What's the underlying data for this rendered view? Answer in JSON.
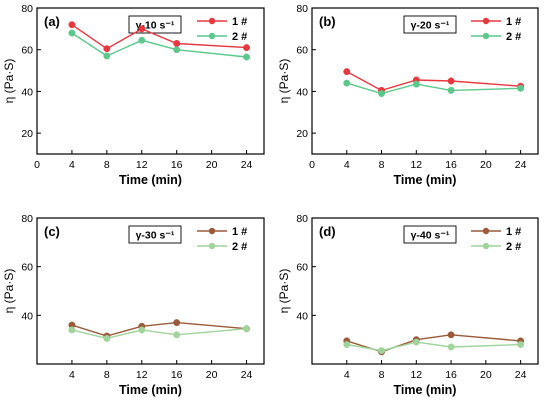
{
  "chart_data": [
    {
      "type": "line",
      "panel_label": "(a)",
      "annotation": "γ-10 s⁻¹",
      "xlabel": "Time (min)",
      "ylabel": "η (Pa·S)",
      "xlim": [
        0,
        26
      ],
      "ylim": [
        10,
        80
      ],
      "x_ticks": [
        0,
        4,
        8,
        12,
        16,
        20,
        24
      ],
      "y_ticks": [
        20,
        40,
        60,
        80
      ],
      "show_x_tick_labels": false,
      "x": [
        4,
        8,
        12,
        16,
        24
      ],
      "series": [
        {
          "name": "1 #",
          "values": [
            72,
            60.5,
            70,
            63,
            61
          ]
        },
        {
          "name": "2 #",
          "values": [
            68,
            57,
            64.5,
            60,
            56.5
          ]
        }
      ],
      "legend": "top-right"
    },
    {
      "type": "line",
      "panel_label": "(b)",
      "annotation": "γ-20 s⁻¹",
      "xlabel": "Time (min)",
      "ylabel": "η (Pa·S)",
      "xlim": [
        0,
        26
      ],
      "ylim": [
        10,
        80
      ],
      "x_ticks": [
        0,
        4,
        8,
        12,
        16,
        20,
        24
      ],
      "y_ticks": [
        20,
        40,
        60,
        80
      ],
      "show_x_tick_labels": false,
      "x": [
        4,
        8,
        12,
        16,
        24
      ],
      "series": [
        {
          "name": "1 #",
          "values": [
            49.5,
            40.5,
            45.5,
            45,
            42.5
          ]
        },
        {
          "name": "2 #",
          "values": [
            44,
            39,
            43.5,
            40.5,
            41.5
          ]
        }
      ],
      "legend": "top-right"
    },
    {
      "type": "line",
      "panel_label": "(c)",
      "annotation": "γ-30 s⁻¹",
      "xlabel": "Time (min)",
      "ylabel": "η (Pa·S)",
      "xlim": [
        0,
        26
      ],
      "ylim": [
        20,
        80
      ],
      "x_ticks": [
        0,
        4,
        8,
        12,
        16,
        20,
        24
      ],
      "x_tick_labels": [
        "4",
        "8",
        "12",
        "16",
        "20",
        "24"
      ],
      "y_ticks": [
        20,
        40,
        60,
        80
      ],
      "y_tick_labels": [
        "40",
        "60",
        "80"
      ],
      "show_x_tick_labels": true,
      "x": [
        4,
        8,
        12,
        16,
        24
      ],
      "series": [
        {
          "name": "1 #",
          "values": [
            36,
            31.5,
            35.5,
            37,
            34.5
          ]
        },
        {
          "name": "2 #",
          "values": [
            34,
            30.5,
            34,
            32,
            34.5
          ]
        }
      ],
      "legend": "top-right"
    },
    {
      "type": "line",
      "panel_label": "(d)",
      "annotation": "γ-40 s⁻¹",
      "xlabel": "Time (min)",
      "ylabel": "η (Pa·S)",
      "xlim": [
        0,
        26
      ],
      "ylim": [
        20,
        80
      ],
      "x_ticks": [
        0,
        4,
        8,
        12,
        16,
        20,
        24
      ],
      "x_tick_labels": [
        "4",
        "8",
        "12",
        "16",
        "20",
        "24"
      ],
      "y_ticks": [
        20,
        40,
        60,
        80
      ],
      "y_tick_labels": [
        "40",
        "60",
        "80"
      ],
      "show_x_tick_labels": true,
      "x": [
        4,
        8,
        12,
        16,
        24
      ],
      "series": [
        {
          "name": "1 #",
          "values": [
            29.5,
            25,
            30,
            32,
            29.5
          ]
        },
        {
          "name": "2 #",
          "values": [
            28,
            25.5,
            29,
            27,
            28
          ]
        }
      ],
      "legend": "top-right"
    }
  ],
  "colors": {
    "top_series1": "#e8383f",
    "top_series2": "#5bc98c",
    "bottom_series1": "#9b5a3a",
    "bottom_series2": "#9fd49a",
    "axis": "#000000"
  }
}
